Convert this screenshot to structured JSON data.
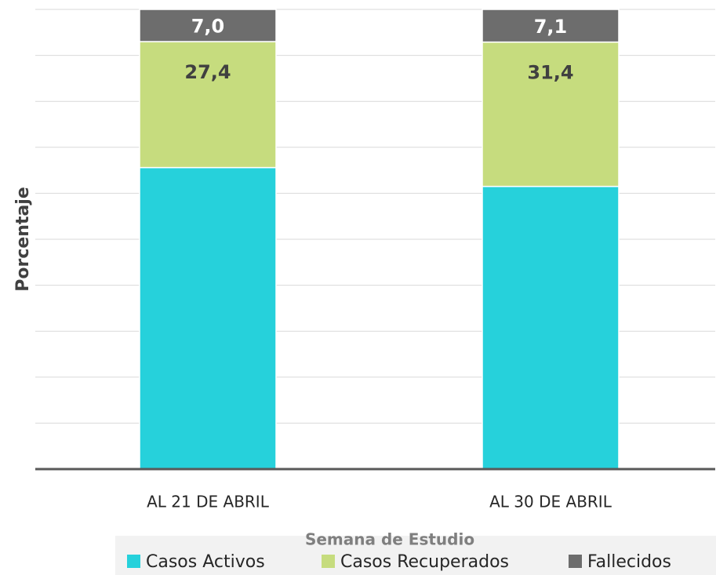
{
  "chart_data": {
    "type": "stacked_bar",
    "y_label": "Porcentaje",
    "x_label": "Semana de Estudio",
    "categories": [
      "AL 21 DE ABRIL",
      "AL 30 DE ABRIL"
    ],
    "series": [
      {
        "name": "Casos Activos",
        "color": "#26d1db",
        "values": [
          65.6,
          61.5
        ],
        "value_labels": [
          null,
          null
        ]
      },
      {
        "name": "Casos Recuperados",
        "color": "#c6dc7e",
        "values": [
          27.4,
          31.4
        ],
        "value_labels": [
          "27,4",
          "31,4"
        ]
      },
      {
        "name": "Fallecidos",
        "color": "#6d6d6d",
        "values": [
          7.0,
          7.1
        ],
        "value_labels": [
          "7,0",
          "7,1"
        ]
      }
    ],
    "ylim": [
      0,
      100
    ],
    "yticks": [
      0,
      10,
      20,
      30,
      40,
      50,
      60,
      70,
      80,
      90,
      100
    ],
    "grid": true,
    "legend": "bottom"
  }
}
